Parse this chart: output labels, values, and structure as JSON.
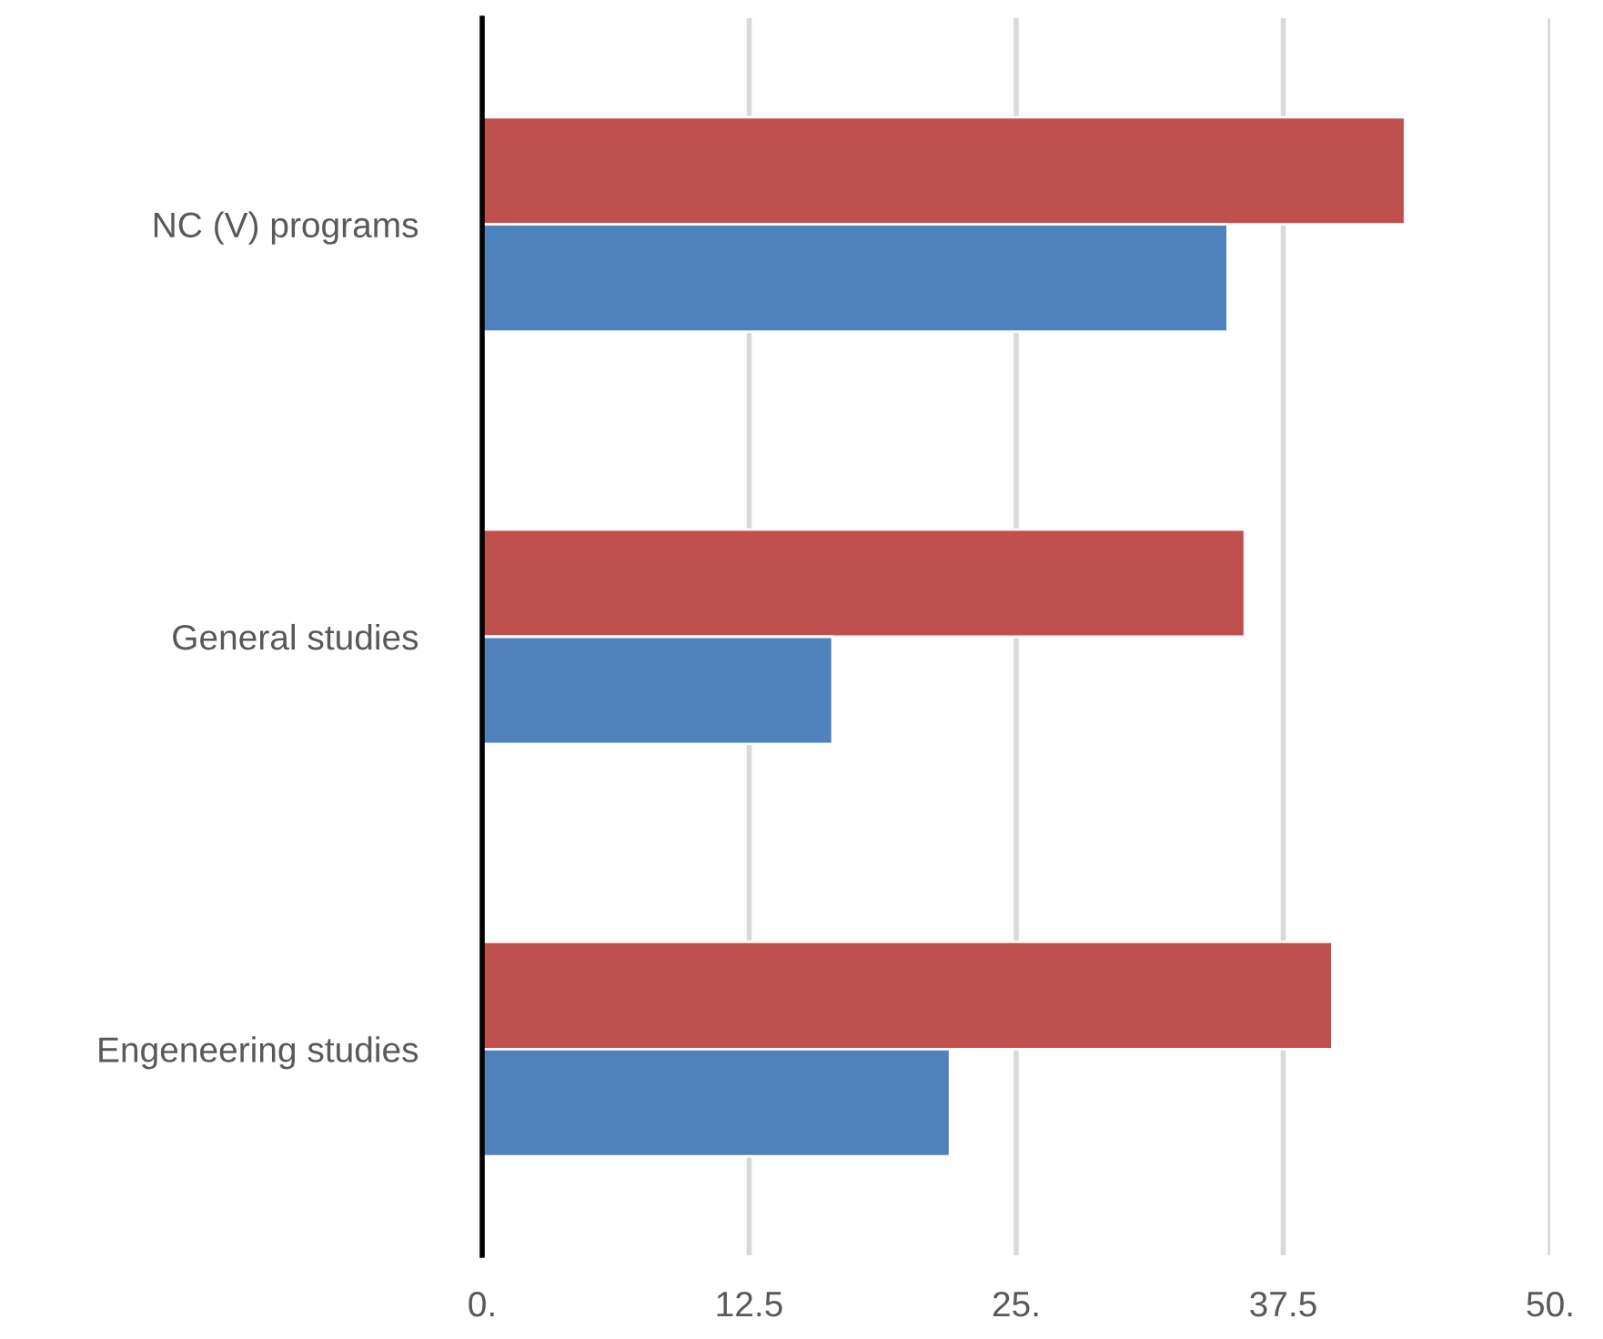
{
  "chart_data": {
    "type": "bar",
    "orientation": "horizontal",
    "categories": [
      "NC (V) programs",
      "General studies",
      "Engeneering studies"
    ],
    "series": [
      {
        "color": "#c0504d",
        "values": [
          43.2,
          35.7,
          39.8
        ]
      },
      {
        "color": "#4f81bd",
        "values": [
          34.9,
          16.4,
          21.9
        ]
      }
    ],
    "xlim": [
      0,
      50
    ],
    "xticks": [
      {
        "value": 0,
        "label": "0."
      },
      12.5,
      {
        "value": 25,
        "label": "25."
      },
      37.5,
      {
        "value": 50,
        "label": "50."
      }
    ],
    "grid": "x"
  }
}
